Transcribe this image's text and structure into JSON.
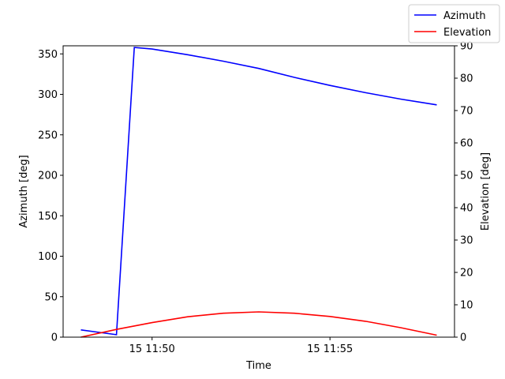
{
  "chart_data": {
    "type": "line",
    "xlabel": "Time",
    "ylabel": "Azimuth [deg]",
    "y2label": "Elevation [deg]",
    "ylim": [
      0,
      360
    ],
    "y2lim": [
      0,
      90
    ],
    "xlim": [
      "15 11:47:30",
      "15 11:58:30"
    ],
    "x_ticks": [
      {
        "time": "15 11:50",
        "label": "15 11:50"
      },
      {
        "time": "15 11:55",
        "label": "15 11:55"
      }
    ],
    "y_ticks": [
      0,
      50,
      100,
      150,
      200,
      250,
      300,
      350
    ],
    "y2_ticks": [
      0,
      10,
      20,
      30,
      40,
      50,
      60,
      70,
      80,
      90
    ],
    "legend_position": "top-right",
    "series": [
      {
        "name": "Azimuth",
        "axis": "left",
        "color": "#0000ff",
        "points": [
          {
            "t": "15 11:48:00",
            "v": 9
          },
          {
            "t": "15 11:49:00",
            "v": 3
          },
          {
            "t": "15 11:49:30",
            "v": 358
          },
          {
            "t": "15 11:50:00",
            "v": 356
          },
          {
            "t": "15 11:51:00",
            "v": 349
          },
          {
            "t": "15 11:52:00",
            "v": 341
          },
          {
            "t": "15 11:53:00",
            "v": 332
          },
          {
            "t": "15 11:54:00",
            "v": 321
          },
          {
            "t": "15 11:55:00",
            "v": 311
          },
          {
            "t": "15 11:56:00",
            "v": 302
          },
          {
            "t": "15 11:57:00",
            "v": 294
          },
          {
            "t": "15 11:58:00",
            "v": 287
          }
        ]
      },
      {
        "name": "Elevation",
        "axis": "right",
        "color": "#ff0000",
        "points": [
          {
            "t": "15 11:48:00",
            "v": 0
          },
          {
            "t": "15 11:49:00",
            "v": 2.4
          },
          {
            "t": "15 11:50:00",
            "v": 4.5
          },
          {
            "t": "15 11:51:00",
            "v": 6.3
          },
          {
            "t": "15 11:52:00",
            "v": 7.4
          },
          {
            "t": "15 11:53:00",
            "v": 7.8
          },
          {
            "t": "15 11:54:00",
            "v": 7.4
          },
          {
            "t": "15 11:55:00",
            "v": 6.4
          },
          {
            "t": "15 11:56:00",
            "v": 4.9
          },
          {
            "t": "15 11:57:00",
            "v": 2.9
          },
          {
            "t": "15 11:58:00",
            "v": 0.6
          }
        ]
      }
    ]
  }
}
